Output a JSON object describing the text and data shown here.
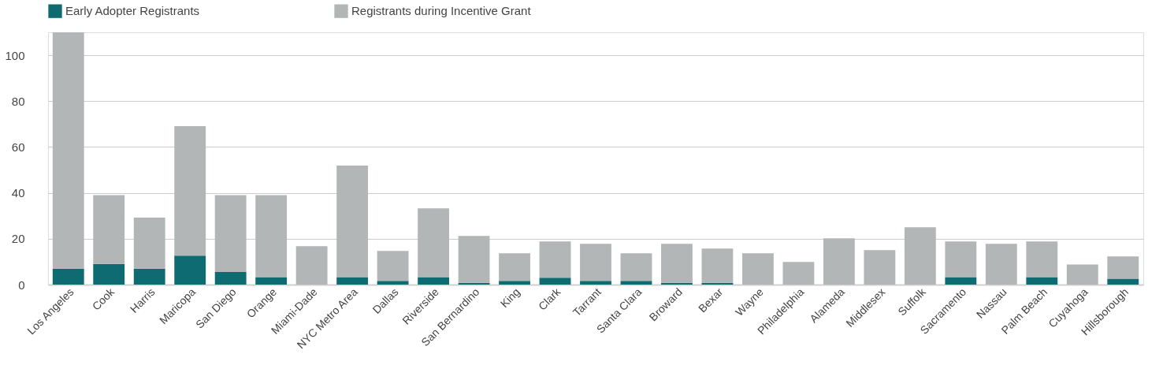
{
  "chart_data": {
    "type": "bar",
    "stacked": true,
    "categories": [
      "Los Angeles",
      "Cook",
      "Harris",
      "Maricopa",
      "San Diego",
      "Orange",
      "Miami-Dade",
      "NYC Metro Area",
      "Dallas",
      "Riverside",
      "San Bernardino",
      "King",
      "Clark",
      "Tarrant",
      "Santa Clara",
      "Broward",
      "Bexar",
      "Wayne",
      "Philadelphia",
      "Alameda",
      "Middlesex",
      "Suffolk",
      "Sacramento",
      "Nassau",
      "Palm Beach",
      "Cuyahoga",
      "Hillsborough"
    ],
    "series": [
      {
        "name": "Early Adopter Registrants",
        "color": "#0f6b72",
        "values": [
          7,
          9,
          7,
          12.6,
          5.5,
          3.3,
          0,
          3.3,
          1.6,
          3.3,
          0.8,
          1.6,
          3,
          1.6,
          1.6,
          0.8,
          0.8,
          0,
          0,
          0,
          0,
          0,
          3.3,
          0,
          3.3,
          0,
          2.6
        ]
      },
      {
        "name": "Registrants during Incentive Grant",
        "color": "#b3b6b7",
        "values": [
          103,
          30,
          22.2,
          56.5,
          33.5,
          35.7,
          16.8,
          48.6,
          13.1,
          30,
          20.4,
          12.1,
          15.8,
          16.2,
          12.1,
          17,
          14.9,
          13.7,
          9.9,
          20.2,
          15,
          25,
          15.5,
          17.8,
          15.5,
          8.8,
          9.7
        ]
      }
    ],
    "ylim": [
      0,
      110
    ],
    "yticks": [
      0,
      20,
      40,
      60,
      80,
      100
    ],
    "grid": "y",
    "legend": "top"
  }
}
